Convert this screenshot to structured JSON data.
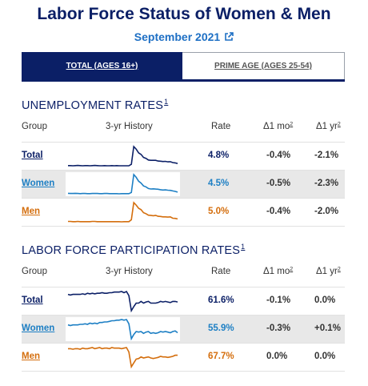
{
  "title": "Labor Force Status of Women & Men",
  "subtitle": "September 2021",
  "icons": {
    "external": "external-link-icon"
  },
  "tabs": [
    {
      "label": "TOTAL (AGES 16+)",
      "active": true
    },
    {
      "label": "PRIME AGE (AGES 25-54)",
      "active": false
    }
  ],
  "headers": {
    "group": "Group",
    "history": "3-yr History",
    "rate": "Rate",
    "d1mo": "Δ1 mo",
    "d1yr": "Δ1 yr",
    "footnote": "2"
  },
  "colors": {
    "total": "#0b1f66",
    "women": "#1d7fc4",
    "men": "#d46e0d"
  },
  "sections": [
    {
      "title": "UNEMPLOYMENT RATES",
      "footnote": "1",
      "rows": [
        {
          "group": "Total",
          "rate": "4.8%",
          "d1mo": "-0.4%",
          "d1yr": "-2.1%",
          "color": "#0b1f66",
          "history": [
            3.6,
            3.6,
            3.5,
            3.6,
            3.7,
            3.6,
            3.5,
            3.6,
            3.6,
            3.5,
            3.6,
            3.7,
            3.6,
            3.5,
            3.5,
            3.6,
            3.5,
            3.5,
            3.6,
            3.5,
            3.6,
            3.5,
            3.5,
            3.5,
            3.5,
            3.5,
            4.4,
            14.8,
            13.3,
            11.1,
            10.2,
            8.4,
            7.9,
            6.9,
            6.7,
            6.7,
            6.7,
            6.3,
            6.2,
            6.0,
            6.1,
            5.8,
            5.9,
            5.4,
            5.2,
            4.8
          ]
        },
        {
          "group": "Women",
          "rate": "4.5%",
          "d1mo": "-0.5%",
          "d1yr": "-2.3%",
          "color": "#1d7fc4",
          "history": [
            3.7,
            3.6,
            3.6,
            3.7,
            3.6,
            3.5,
            3.6,
            3.6,
            3.5,
            3.5,
            3.6,
            3.6,
            3.6,
            3.5,
            3.5,
            3.6,
            3.6,
            3.5,
            3.5,
            3.5,
            3.5,
            3.4,
            3.5,
            3.5,
            3.5,
            3.5,
            4.3,
            16.1,
            14.3,
            11.7,
            10.5,
            8.6,
            8.0,
            6.9,
            6.6,
            6.7,
            6.5,
            6.4,
            6.1,
            5.9,
            6.0,
            5.8,
            5.7,
            5.3,
            5.0,
            4.5
          ]
        },
        {
          "group": "Men",
          "rate": "5.0%",
          "d1mo": "-0.4%",
          "d1yr": "-2.0%",
          "color": "#d46e0d",
          "history": [
            3.7,
            3.7,
            3.6,
            3.6,
            3.7,
            3.6,
            3.6,
            3.6,
            3.6,
            3.6,
            3.7,
            3.7,
            3.6,
            3.6,
            3.6,
            3.6,
            3.6,
            3.6,
            3.6,
            3.6,
            3.6,
            3.6,
            3.5,
            3.6,
            3.6,
            3.6,
            4.6,
            13.6,
            12.3,
            10.6,
            9.9,
            8.3,
            7.8,
            7.0,
            6.9,
            6.7,
            6.9,
            6.4,
            6.3,
            6.1,
            6.1,
            6.0,
            6.1,
            5.4,
            5.3,
            5.0
          ]
        }
      ]
    },
    {
      "title": "LABOR FORCE PARTICIPATION RATES",
      "footnote": "1",
      "rows": [
        {
          "group": "Total",
          "rate": "61.6%",
          "d1mo": "-0.1%",
          "d1yr": "0.0%",
          "color": "#0b1f66",
          "history": [
            62.9,
            62.8,
            62.9,
            62.9,
            62.9,
            62.9,
            63.0,
            62.9,
            63.1,
            63.0,
            63.1,
            63.0,
            63.1,
            63.1,
            63.2,
            63.1,
            63.1,
            63.2,
            63.2,
            63.3,
            63.3,
            63.3,
            63.4,
            63.2,
            63.4,
            62.7,
            60.1,
            60.8,
            61.4,
            61.4,
            61.7,
            61.4,
            61.6,
            61.7,
            61.4,
            61.4,
            61.4,
            61.5,
            61.7,
            61.6,
            61.7,
            61.6,
            61.5,
            61.7,
            61.7,
            61.6
          ]
        },
        {
          "group": "Women",
          "rate": "55.9%",
          "d1mo": "-0.3%",
          "d1yr": "+0.1%",
          "color": "#1d7fc4",
          "history": [
            57.2,
            57.1,
            57.2,
            57.2,
            57.2,
            57.3,
            57.3,
            57.4,
            57.3,
            57.5,
            57.4,
            57.5,
            57.4,
            57.6,
            57.6,
            57.7,
            57.7,
            57.8,
            57.9,
            57.9,
            58.0,
            58.0,
            58.1,
            58.0,
            58.1,
            57.4,
            54.9,
            55.6,
            56.1,
            56.0,
            56.1,
            55.8,
            56.0,
            56.1,
            55.8,
            55.9,
            55.8,
            55.9,
            56.1,
            56.0,
            56.1,
            56.0,
            55.9,
            56.1,
            56.2,
            55.9
          ]
        },
        {
          "group": "Men",
          "rate": "67.7%",
          "d1mo": "0.0%",
          "d1yr": "0.0%",
          "color": "#d46e0d",
          "history": [
            68.9,
            68.9,
            68.8,
            68.9,
            68.9,
            68.8,
            69.0,
            68.9,
            68.9,
            69.0,
            69.1,
            68.9,
            69.0,
            69.1,
            68.9,
            69.0,
            69.0,
            68.9,
            69.1,
            69.0,
            69.0,
            69.0,
            68.9,
            69.0,
            69.1,
            68.3,
            65.6,
            66.3,
            67.0,
            67.1,
            67.4,
            67.2,
            67.3,
            67.4,
            67.2,
            67.1,
            67.2,
            67.3,
            67.5,
            67.4,
            67.4,
            67.3,
            67.4,
            67.5,
            67.7,
            67.7
          ]
        }
      ]
    }
  ]
}
